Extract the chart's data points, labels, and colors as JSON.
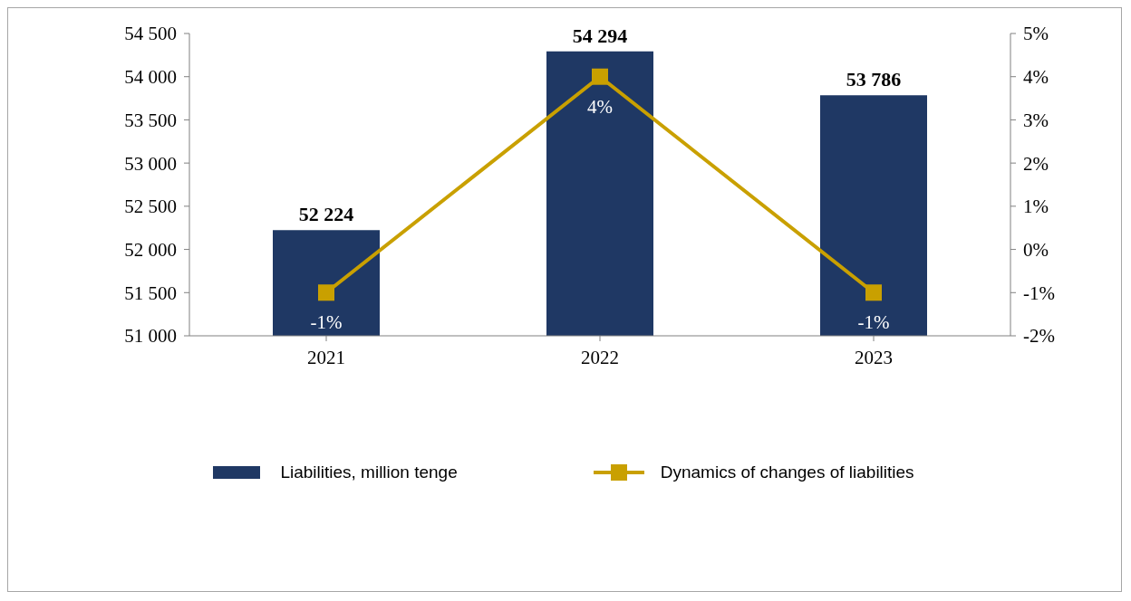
{
  "chart_data": {
    "type": "bar",
    "categories": [
      "2021",
      "2022",
      "2023"
    ],
    "series": [
      {
        "name": "Liabilities, million tenge",
        "color": "#1f3864",
        "values": [
          52224,
          54294,
          53786
        ],
        "value_labels": [
          "52 224",
          "54 294",
          "53 786"
        ]
      },
      {
        "type": "line",
        "axis": "y2",
        "name": "Dynamics of changes of liabilities",
        "color": "#c9a000",
        "values": [
          -1,
          4,
          -1
        ],
        "value_labels": [
          "-1%",
          "4%",
          "-1%"
        ]
      }
    ],
    "ylim": [
      51000,
      54500
    ],
    "yticks": [
      {
        "value": 51000,
        "label": "51 000"
      },
      {
        "value": 51500,
        "label": "51 500"
      },
      {
        "value": 52000,
        "label": "52 000"
      },
      {
        "value": 52500,
        "label": "52 500"
      },
      {
        "value": 53000,
        "label": "53 000"
      },
      {
        "value": 53500,
        "label": "53 500"
      },
      {
        "value": 54000,
        "label": "54 000"
      },
      {
        "value": 54500,
        "label": "54 500"
      }
    ],
    "y2lim": [
      -2,
      5
    ],
    "y2ticks": [
      {
        "value": -2,
        "label": "-2%"
      },
      {
        "value": -1,
        "label": "-1%"
      },
      {
        "value": 0,
        "label": "0%"
      },
      {
        "value": 1,
        "label": "1%"
      },
      {
        "value": 2,
        "label": "2%"
      },
      {
        "value": 3,
        "label": "3%"
      },
      {
        "value": 4,
        "label": "4%"
      },
      {
        "value": 5,
        "label": "5%"
      }
    ],
    "grid": false,
    "legend": "bottom",
    "marker": "square",
    "line_style": "solid"
  }
}
